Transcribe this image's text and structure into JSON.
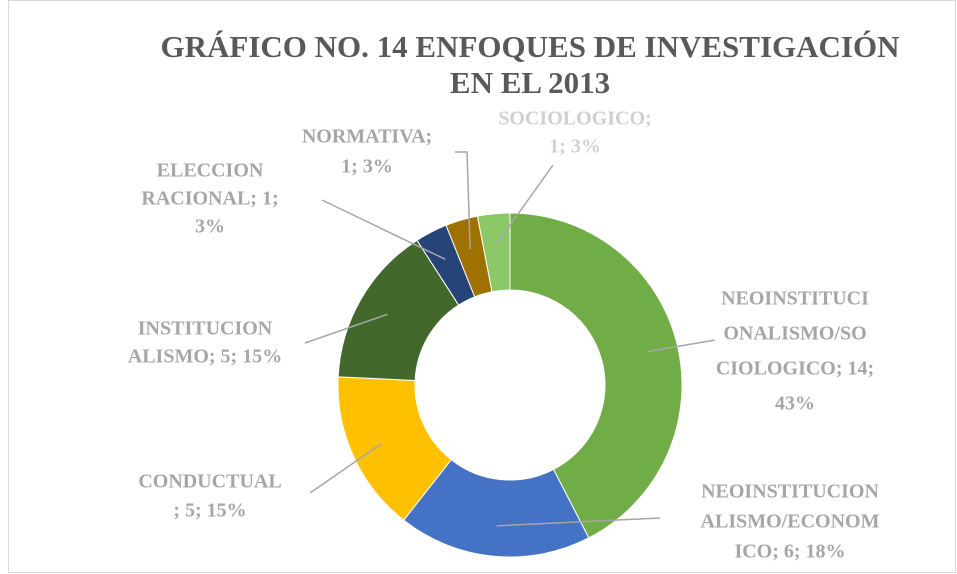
{
  "chart_data": {
    "type": "donut",
    "title_lines": [
      "GRÁFICO NO. 14  ENFOQUES DE INVESTIGACIÓN",
      "EN EL 2013"
    ],
    "values": [
      14,
      6,
      5,
      5,
      1,
      1,
      1
    ],
    "labels": [
      [
        "NEOINSTITUCI",
        "ONALISMO/SO",
        "CIOLOGICO; 14;",
        "43%"
      ],
      [
        "NEOINSTITUCION",
        "ALISMO/ECONOM",
        "ICO; 6; 18%"
      ],
      [
        "CONDUCTUAL",
        "; 5; 15%"
      ],
      [
        "INSTITUCION",
        "ALISMO; 5; 15%"
      ],
      [
        "ELECCION",
        "RACIONAL; 1;",
        "3%"
      ],
      [
        "NORMATIVA;",
        "1; 3%"
      ],
      [
        "SOCIOLOGICO;",
        "1; 3%"
      ]
    ],
    "colors": [
      "#70ad47",
      "#4472c4",
      "#ffc000",
      "#43682b",
      "#264478",
      "#9e7100",
      "#8cc768"
    ]
  }
}
